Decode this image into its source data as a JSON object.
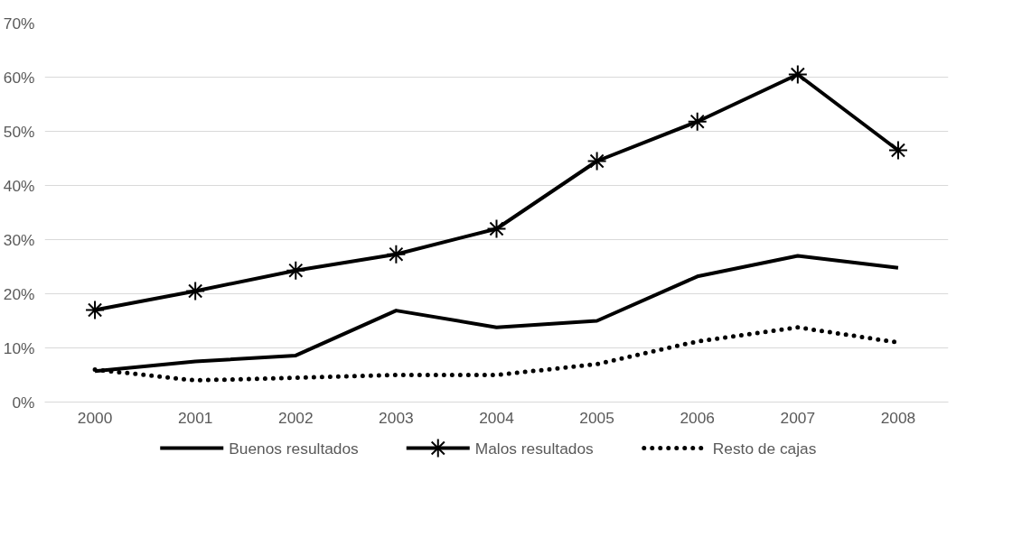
{
  "chart_data": {
    "type": "line",
    "categories": [
      "2000",
      "2001",
      "2002",
      "2003",
      "2004",
      "2005",
      "2006",
      "2007",
      "2008"
    ],
    "series": [
      {
        "name": "Buenos resultados",
        "color": "#000000",
        "marker": "none",
        "line_style": "solid",
        "values": [
          5.7,
          7.5,
          8.6,
          16.9,
          13.8,
          15,
          23.2,
          27,
          24.8
        ]
      },
      {
        "name": "Malos resultados",
        "color": "#000000",
        "marker": "cross",
        "line_style": "solid",
        "values": [
          17,
          20.5,
          24.3,
          27.3,
          32,
          44.5,
          51.8,
          60.5,
          46.5
        ]
      },
      {
        "name": "Resto de cajas",
        "color": "#000000",
        "marker": "none",
        "line_style": "dotted",
        "values": [
          6,
          4,
          4.5,
          5,
          5,
          7,
          11.2,
          13.8,
          11
        ]
      }
    ],
    "ylim": [
      0,
      70
    ],
    "yticks": [
      {
        "value": 0,
        "label": "0%"
      },
      {
        "value": 10,
        "label": "10%"
      },
      {
        "value": 20,
        "label": "20%"
      },
      {
        "value": 30,
        "label": "30%"
      },
      {
        "value": 40,
        "label": "40%"
      },
      {
        "value": 50,
        "label": "50%"
      },
      {
        "value": 60,
        "label": "60%"
      },
      {
        "value": 70,
        "label": "70%"
      }
    ],
    "grid": "y",
    "legend": "bottom"
  }
}
